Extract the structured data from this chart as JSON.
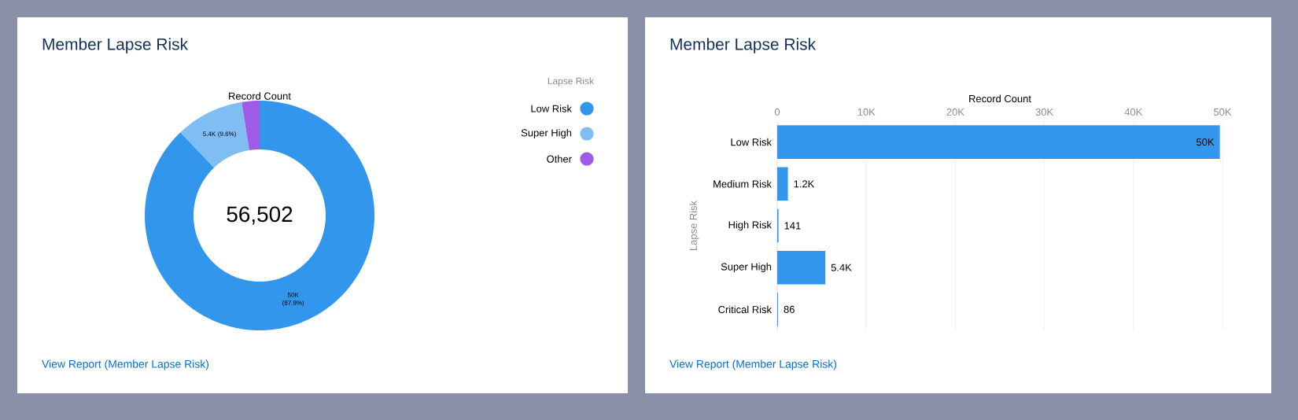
{
  "chart_data": [
    {
      "type": "donut",
      "title": "Member Lapse Risk",
      "subtitle": "Record Count",
      "legend_title": "Lapse Risk",
      "categories": [
        "Low Risk",
        "Super High",
        "Other"
      ],
      "values": [
        87.9,
        9.6,
        2.5
      ],
      "colors": [
        "#3296ed",
        "#80bdf2",
        "#a05be6"
      ],
      "value_labels": [
        "50K (87.9%)",
        "5.4K (9.6%)",
        null
      ],
      "legend": "top right",
      "annotations": [
        "56,502",
        "View Report (Member Lapse Risk)"
      ]
    },
    {
      "type": "bar",
      "orientation": "horizontal",
      "title": "Member Lapse Risk",
      "xlabel": "Record Count",
      "ylabel": "Lapse Risk",
      "categories": [
        "Low Risk",
        "Medium Risk",
        "High Risk",
        "Super High",
        "Critical Risk"
      ],
      "values": [
        49700,
        1200,
        141,
        5400,
        86
      ],
      "color": "#3296ed",
      "xlim": [
        0,
        50000
      ],
      "xticks": [
        0,
        {
          "value": 10000,
          "label": "10K"
        },
        {
          "value": 20000,
          "label": "20K"
        },
        {
          "value": 30000,
          "label": "30K"
        },
        {
          "value": 40000,
          "label": "40K"
        },
        {
          "value": 50000,
          "label": "50K"
        }
      ],
      "grid": "x",
      "value_labels": [
        "50K",
        "1.2K",
        "141",
        "5.4K",
        "86"
      ],
      "annotations": [
        "View Report (Member Lapse Risk)"
      ]
    }
  ]
}
